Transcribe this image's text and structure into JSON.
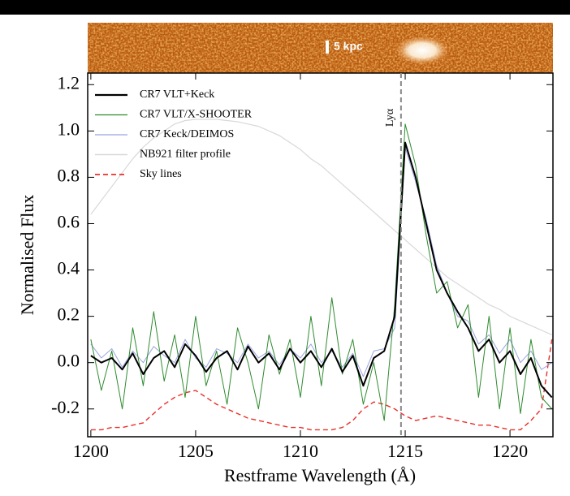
{
  "chart_data": {
    "type": "line",
    "image_label": "5 kpc",
    "x_label": "Restframe Wavelength (Å)",
    "y_label": "Normalised Flux",
    "x": [
      1200,
      1200.5,
      1201,
      1201.5,
      1202,
      1202.5,
      1203,
      1203.5,
      1204,
      1204.5,
      1205,
      1205.5,
      1206,
      1206.5,
      1207,
      1207.5,
      1208,
      1208.5,
      1209,
      1209.5,
      1210,
      1210.5,
      1211,
      1211.5,
      1212,
      1212.5,
      1213,
      1213.5,
      1214,
      1214.5,
      1215,
      1215.5,
      1216,
      1216.5,
      1217,
      1217.5,
      1218,
      1218.5,
      1219,
      1219.5,
      1220,
      1220.5,
      1221,
      1221.5,
      1222
    ],
    "series": [
      {
        "name": "CR7 VLT+Keck",
        "color": "#000000",
        "width": 2,
        "dash": "none",
        "values": [
          0.03,
          0.0,
          0.02,
          -0.03,
          0.04,
          -0.05,
          0.02,
          0.05,
          -0.02,
          0.08,
          0.03,
          -0.04,
          0.02,
          0.05,
          -0.03,
          0.07,
          0.0,
          0.04,
          -0.03,
          0.06,
          0.0,
          0.05,
          -0.02,
          0.06,
          -0.04,
          0.03,
          -0.1,
          0.02,
          0.05,
          0.2,
          0.95,
          0.8,
          0.6,
          0.4,
          0.3,
          0.22,
          0.15,
          0.05,
          0.1,
          0.0,
          0.05,
          -0.05,
          0.02,
          -0.1,
          -0.15
        ]
      },
      {
        "name": "CR7 VLT/X-SHOOTER",
        "color": "#2e8b2e",
        "width": 1,
        "dash": "none",
        "values": [
          0.1,
          -0.12,
          0.05,
          -0.2,
          0.15,
          -0.1,
          0.22,
          -0.08,
          0.12,
          -0.15,
          0.2,
          -0.1,
          0.05,
          -0.18,
          0.15,
          0.0,
          -0.2,
          0.12,
          -0.05,
          0.1,
          -0.15,
          0.2,
          -0.1,
          0.28,
          -0.05,
          0.1,
          -0.18,
          0.0,
          -0.25,
          0.25,
          1.03,
          0.85,
          0.55,
          0.3,
          0.35,
          0.15,
          0.25,
          -0.15,
          0.2,
          -0.2,
          0.15,
          -0.22,
          0.1,
          -0.15,
          -0.2
        ]
      },
      {
        "name": "CR7 Keck/DEIMOS",
        "color": "#9aa4e0",
        "width": 1,
        "dash": "none",
        "values": [
          0.08,
          0.02,
          0.06,
          -0.02,
          0.05,
          0.0,
          0.07,
          0.03,
          0.0,
          0.1,
          0.02,
          -0.02,
          0.06,
          0.04,
          0.0,
          0.08,
          0.02,
          0.05,
          -0.01,
          0.06,
          0.02,
          0.08,
          0.0,
          0.05,
          -0.02,
          0.04,
          -0.06,
          0.05,
          0.06,
          0.15,
          0.93,
          0.78,
          0.62,
          0.42,
          0.3,
          0.2,
          0.18,
          0.08,
          0.12,
          0.04,
          0.1,
          0.0,
          0.05,
          -0.03,
          0.0
        ]
      },
      {
        "name": "NB921 filter profile",
        "color": "#d8d8d8",
        "width": 1.2,
        "dash": "none",
        "values": [
          0.64,
          0.7,
          0.76,
          0.82,
          0.88,
          0.93,
          0.97,
          1.0,
          1.03,
          1.045,
          1.05,
          1.05,
          1.05,
          1.045,
          1.04,
          1.03,
          1.02,
          1.0,
          0.98,
          0.95,
          0.92,
          0.88,
          0.85,
          0.81,
          0.77,
          0.73,
          0.69,
          0.65,
          0.61,
          0.57,
          0.53,
          0.49,
          0.45,
          0.41,
          0.37,
          0.34,
          0.31,
          0.28,
          0.25,
          0.23,
          0.2,
          0.18,
          0.16,
          0.14,
          0.12
        ]
      },
      {
        "name": "Sky lines",
        "color": "#e8302a",
        "width": 1.4,
        "dash": "6 4",
        "values": [
          -0.29,
          -0.29,
          -0.28,
          -0.28,
          -0.27,
          -0.26,
          -0.22,
          -0.18,
          -0.15,
          -0.13,
          -0.12,
          -0.15,
          -0.18,
          -0.2,
          -0.22,
          -0.24,
          -0.25,
          -0.26,
          -0.27,
          -0.28,
          -0.28,
          -0.29,
          -0.29,
          -0.29,
          -0.28,
          -0.25,
          -0.2,
          -0.17,
          -0.18,
          -0.2,
          -0.23,
          -0.25,
          -0.24,
          -0.23,
          -0.24,
          -0.25,
          -0.26,
          -0.27,
          -0.27,
          -0.28,
          -0.29,
          -0.29,
          -0.25,
          -0.2,
          0.1
        ]
      }
    ],
    "reference_line": {
      "x": 1214.8,
      "label": "Lyα",
      "color": "#888888"
    },
    "xlim": [
      1199.85,
      1222.05
    ],
    "ylim": [
      -0.32,
      1.25
    ],
    "xticks": [
      1200,
      1205,
      1210,
      1215,
      1220
    ],
    "yticks": [
      -0.2,
      {
        "value": 0.0,
        "label": "0.0"
      },
      0.2,
      0.4,
      0.6,
      0.8,
      {
        "value": 1.0,
        "label": "1.0"
      },
      1.2
    ],
    "legend": "upper-left",
    "grid": false
  }
}
